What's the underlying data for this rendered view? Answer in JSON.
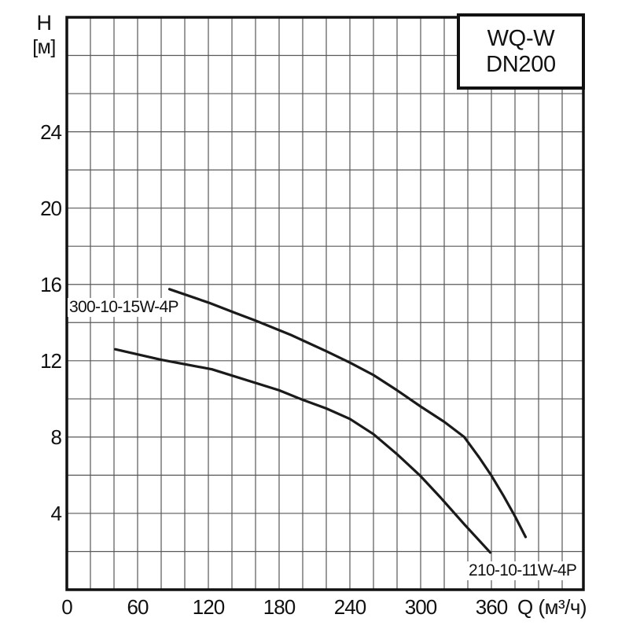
{
  "legend": {
    "line1": "WQ-W",
    "line2": "DN200"
  },
  "axes": {
    "y": {
      "title_line1": "H",
      "title_line2": "[м]",
      "ticks": [
        4,
        8,
        12,
        16,
        20,
        24
      ],
      "range": [
        0,
        30
      ],
      "minor_step": 2
    },
    "x": {
      "title": "Q (м³/ч)",
      "ticks": [
        0,
        60,
        120,
        180,
        240,
        300,
        360
      ],
      "range": [
        0,
        438
      ],
      "minor_step": 20
    }
  },
  "chart_data": {
    "type": "line",
    "title": "WQ-W DN200",
    "xlabel": "Q (м³/ч)",
    "ylabel": "H [м]",
    "xlim": [
      0,
      438
    ],
    "ylim": [
      0,
      30
    ],
    "grid": true,
    "legend_position": "top-right",
    "series": [
      {
        "name": "300-10-15W-4P",
        "points": [
          [
            87,
            15.75
          ],
          [
            120,
            15.05
          ],
          [
            143,
            14.5
          ],
          [
            160,
            14.1
          ],
          [
            190,
            13.35
          ],
          [
            220,
            12.5
          ],
          [
            240,
            11.9
          ],
          [
            260,
            11.25
          ],
          [
            280,
            10.45
          ],
          [
            300,
            9.6
          ],
          [
            320,
            8.8
          ],
          [
            337,
            8.0
          ],
          [
            350,
            6.9
          ],
          [
            360,
            5.98
          ],
          [
            370,
            4.95
          ],
          [
            380,
            3.85
          ],
          [
            389,
            2.76
          ]
        ]
      },
      {
        "name": "210-10-11W-4P",
        "points": [
          [
            41,
            12.6
          ],
          [
            80,
            12.05
          ],
          [
            123,
            11.55
          ],
          [
            180,
            10.45
          ],
          [
            200,
            9.95
          ],
          [
            220,
            9.5
          ],
          [
            240,
            8.95
          ],
          [
            260,
            8.15
          ],
          [
            280,
            7.1
          ],
          [
            300,
            5.95
          ],
          [
            317,
            4.82
          ],
          [
            337,
            3.43
          ],
          [
            359,
            1.95
          ]
        ]
      }
    ]
  },
  "colors": {
    "background": "#ffffff",
    "grid": "#58585a",
    "curve": "#1a1a1a",
    "frame": "#111111",
    "text": "#111111"
  }
}
